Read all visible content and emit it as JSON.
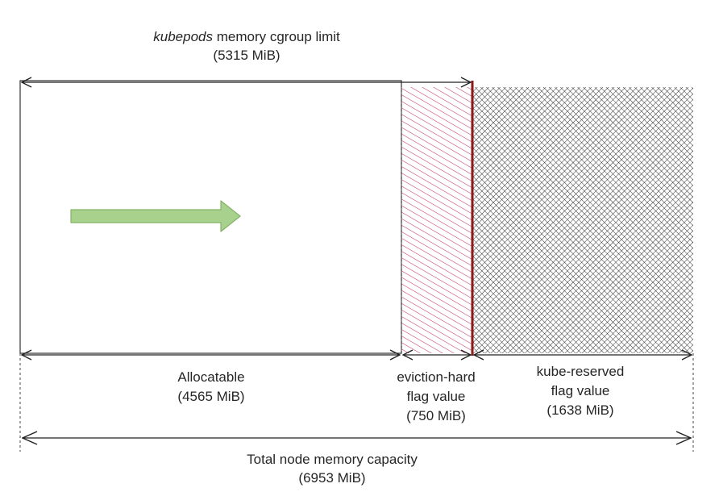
{
  "top_label": {
    "prefix": "kubepods",
    "rest": " memory cgroup limit",
    "value": "(5315 MiB)"
  },
  "segments": [
    {
      "id": "allocatable",
      "line1": "Allocatable",
      "line2": "(4565 MiB)",
      "line3": "",
      "mib": 4565
    },
    {
      "id": "eviction",
      "line1": "eviction-hard",
      "line2": "flag value",
      "line3": "(750 MiB)",
      "mib": 750
    },
    {
      "id": "kube-reserved",
      "line1": "kube-reserved",
      "line2": "flag value",
      "line3": "(1638 MiB)",
      "mib": 1638
    }
  ],
  "bottom_label": {
    "title": "Total node memory capacity",
    "value": "(6953 MiB)"
  },
  "colors": {
    "eviction_hatch": "#c2376a",
    "limit_line": "#8b1a1a",
    "reserved_hatch": "#1a1a1a",
    "arrow_fill": "#a9d18e",
    "arrow_stroke": "#82b366"
  }
}
